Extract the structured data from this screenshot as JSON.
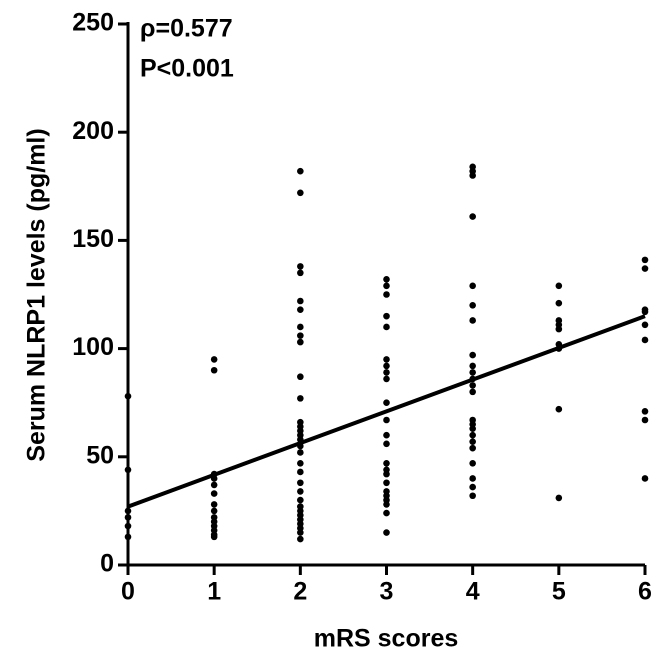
{
  "chart_data": {
    "type": "scatter",
    "y_label": "Serum NLRP1 levels (pg/ml)",
    "x_label": "mRS scores",
    "annotations": [
      "ρ=0.577",
      "P<0.001"
    ],
    "color": "#000000",
    "xlim": [
      0,
      6
    ],
    "xticks": [
      0,
      1,
      2,
      3,
      4,
      5,
      6
    ],
    "ylim": [
      0,
      250
    ],
    "yticks": [
      0,
      50,
      100,
      150,
      200,
      250
    ],
    "x": [
      0,
      0,
      0,
      0,
      0,
      0,
      1,
      1,
      1,
      1,
      1,
      1,
      1,
      1,
      1,
      1,
      1,
      1,
      1,
      1,
      2,
      2,
      2,
      2,
      2,
      2,
      2,
      2,
      2,
      2,
      2,
      2,
      2,
      2,
      2,
      2,
      2,
      2,
      2,
      2,
      2,
      2,
      2,
      2,
      2,
      2,
      2,
      2,
      2,
      2,
      2,
      3,
      3,
      3,
      3,
      3,
      3,
      3,
      3,
      3,
      3,
      3,
      3,
      3,
      3,
      3,
      3,
      3,
      3,
      3,
      3,
      3,
      3,
      3,
      4,
      4,
      4,
      4,
      4,
      4,
      4,
      4,
      4,
      4,
      4,
      4,
      4,
      4,
      4,
      4,
      4,
      4,
      4,
      4,
      4,
      4,
      4,
      5,
      5,
      5,
      5,
      5,
      5,
      5,
      5,
      5,
      6,
      6,
      6,
      6,
      6,
      6,
      6,
      6,
      6
    ],
    "values": [
      78,
      44,
      25,
      22,
      18,
      13,
      95,
      90,
      42,
      40,
      37,
      33,
      28,
      25,
      22,
      20,
      18,
      16,
      14,
      13,
      182,
      172,
      138,
      135,
      122,
      118,
      110,
      106,
      103,
      87,
      77,
      66,
      64,
      62,
      60,
      58,
      55,
      52,
      47,
      43,
      38,
      34,
      30,
      27,
      25,
      23,
      21,
      19,
      17,
      15,
      12,
      132,
      129,
      125,
      115,
      110,
      95,
      92,
      89,
      86,
      75,
      67,
      60,
      56,
      47,
      44,
      42,
      38,
      34,
      32,
      30,
      28,
      24,
      15,
      184,
      182,
      180,
      161,
      129,
      120,
      113,
      97,
      92,
      89,
      86,
      83,
      80,
      67,
      65,
      63,
      60,
      57,
      54,
      47,
      40,
      36,
      32,
      129,
      121,
      113,
      111,
      109,
      102,
      100,
      72,
      31,
      141,
      137,
      118,
      117,
      111,
      104,
      71,
      67,
      40
    ],
    "fit": {
      "x": [
        0,
        6
      ],
      "values": [
        27,
        115
      ]
    }
  }
}
